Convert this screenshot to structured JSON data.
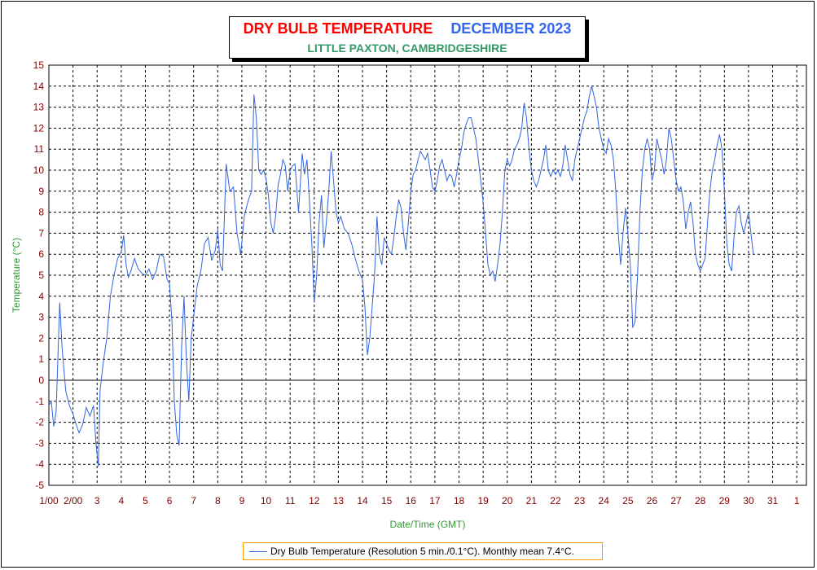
{
  "chart_data": {
    "type": "line",
    "title": "DRY BULB TEMPERATURE",
    "title_month": "DECEMBER 2023",
    "subtitle": "LITTLE PAXTON, CAMBRIDGESHIRE",
    "xlabel": "Date/Time (GMT)",
    "ylabel": "Temperature (°C)",
    "ylim": [
      -5,
      15
    ],
    "xlim": [
      1,
      32.4
    ],
    "yticks": [
      "-5",
      "-4",
      "-3",
      "-2",
      "-1",
      "0",
      "1",
      "2",
      "3",
      "4",
      "5",
      "6",
      "7",
      "8",
      "9",
      "10",
      "11",
      "12",
      "13",
      "14",
      "15"
    ],
    "xticks": [
      {
        "x": 1,
        "label": "1/00"
      },
      {
        "x": 2,
        "label": "2/00"
      },
      {
        "x": 3,
        "label": "3"
      },
      {
        "x": 4,
        "label": "4"
      },
      {
        "x": 5,
        "label": "5"
      },
      {
        "x": 6,
        "label": "6"
      },
      {
        "x": 7,
        "label": "7"
      },
      {
        "x": 8,
        "label": "8"
      },
      {
        "x": 9,
        "label": "9"
      },
      {
        "x": 10,
        "label": "10"
      },
      {
        "x": 11,
        "label": "11"
      },
      {
        "x": 12,
        "label": "12"
      },
      {
        "x": 13,
        "label": "13"
      },
      {
        "x": 14,
        "label": "14"
      },
      {
        "x": 15,
        "label": "15"
      },
      {
        "x": 16,
        "label": "16"
      },
      {
        "x": 17,
        "label": "17"
      },
      {
        "x": 18,
        "label": "18"
      },
      {
        "x": 19,
        "label": "19"
      },
      {
        "x": 20,
        "label": "20"
      },
      {
        "x": 21,
        "label": "21"
      },
      {
        "x": 22,
        "label": "22"
      },
      {
        "x": 23,
        "label": "23"
      },
      {
        "x": 24,
        "label": "24"
      },
      {
        "x": 25,
        "label": "25"
      },
      {
        "x": 26,
        "label": "26"
      },
      {
        "x": 27,
        "label": "27"
      },
      {
        "x": 28,
        "label": "28"
      },
      {
        "x": 29,
        "label": "29"
      },
      {
        "x": 30,
        "label": "30"
      },
      {
        "x": 31,
        "label": "31"
      },
      {
        "x": 32,
        "label": "1"
      }
    ],
    "grid": true,
    "legend_position": "bottom-center",
    "series": [
      {
        "legend": "Dry Bulb Temperature (Resolution 5 min./0.1°C). Monthly mean 7.4°C.",
        "color": "#3366dd",
        "points": [
          [
            1.0,
            -1.2
          ],
          [
            1.1,
            -1.0
          ],
          [
            1.2,
            -2.2
          ],
          [
            1.3,
            -1.5
          ],
          [
            1.45,
            3.7
          ],
          [
            1.55,
            1.5
          ],
          [
            1.7,
            -0.5
          ],
          [
            1.85,
            -1.2
          ],
          [
            2.0,
            -1.6
          ],
          [
            2.1,
            -2.0
          ],
          [
            2.25,
            -2.5
          ],
          [
            2.4,
            -2.1
          ],
          [
            2.55,
            -1.3
          ],
          [
            2.7,
            -1.7
          ],
          [
            2.85,
            -1.2
          ],
          [
            2.95,
            -3.0
          ],
          [
            3.05,
            -4.1
          ],
          [
            3.12,
            -0.5
          ],
          [
            3.25,
            0.8
          ],
          [
            3.4,
            2.0
          ],
          [
            3.55,
            4.0
          ],
          [
            3.7,
            5.0
          ],
          [
            3.85,
            5.8
          ],
          [
            4.0,
            6.1
          ],
          [
            4.1,
            6.9
          ],
          [
            4.2,
            5.5
          ],
          [
            4.3,
            4.9
          ],
          [
            4.4,
            5.2
          ],
          [
            4.55,
            5.8
          ],
          [
            4.7,
            5.3
          ],
          [
            4.85,
            5.1
          ],
          [
            5.0,
            5.0
          ],
          [
            5.15,
            5.3
          ],
          [
            5.3,
            4.8
          ],
          [
            5.45,
            5.2
          ],
          [
            5.6,
            6.0
          ],
          [
            5.75,
            5.9
          ],
          [
            5.9,
            4.8
          ],
          [
            6.0,
            4.6
          ],
          [
            6.1,
            2.8
          ],
          [
            6.2,
            -1.0
          ],
          [
            6.3,
            -2.6
          ],
          [
            6.4,
            -3.1
          ],
          [
            6.5,
            1.5
          ],
          [
            6.6,
            4.0
          ],
          [
            6.7,
            1.0
          ],
          [
            6.8,
            -1.0
          ],
          [
            6.9,
            2.0
          ],
          [
            7.0,
            3.0
          ],
          [
            7.15,
            4.5
          ],
          [
            7.3,
            5.2
          ],
          [
            7.45,
            6.5
          ],
          [
            7.6,
            6.8
          ],
          [
            7.75,
            5.7
          ],
          [
            7.9,
            6.2
          ],
          [
            8.0,
            7.2
          ],
          [
            8.1,
            5.5
          ],
          [
            8.2,
            5.2
          ],
          [
            8.35,
            10.3
          ],
          [
            8.5,
            9.0
          ],
          [
            8.65,
            9.2
          ],
          [
            8.8,
            7.0
          ],
          [
            8.95,
            6.0
          ],
          [
            9.1,
            7.8
          ],
          [
            9.25,
            8.5
          ],
          [
            9.4,
            9.0
          ],
          [
            9.5,
            13.6
          ],
          [
            9.6,
            12.5
          ],
          [
            9.7,
            10.0
          ],
          [
            9.8,
            9.8
          ],
          [
            9.9,
            10.0
          ],
          [
            10.0,
            9.6
          ],
          [
            10.1,
            8.8
          ],
          [
            10.2,
            7.5
          ],
          [
            10.3,
            7.0
          ],
          [
            10.4,
            7.8
          ],
          [
            10.5,
            9.3
          ],
          [
            10.6,
            9.8
          ],
          [
            10.7,
            10.5
          ],
          [
            10.8,
            10.2
          ],
          [
            10.9,
            9.0
          ],
          [
            11.0,
            10.0
          ],
          [
            11.1,
            10.2
          ],
          [
            11.2,
            10.3
          ],
          [
            11.35,
            8.0
          ],
          [
            11.5,
            10.8
          ],
          [
            11.6,
            9.8
          ],
          [
            11.7,
            10.5
          ],
          [
            11.8,
            8.5
          ],
          [
            11.9,
            6.5
          ],
          [
            12.0,
            3.7
          ],
          [
            12.1,
            5.0
          ],
          [
            12.2,
            7.5
          ],
          [
            12.3,
            8.8
          ],
          [
            12.4,
            6.3
          ],
          [
            12.5,
            7.5
          ],
          [
            12.6,
            9.0
          ],
          [
            12.7,
            10.9
          ],
          [
            12.8,
            9.5
          ],
          [
            12.9,
            8.0
          ],
          [
            13.0,
            7.5
          ],
          [
            13.1,
            7.8
          ],
          [
            13.25,
            7.2
          ],
          [
            13.4,
            7.0
          ],
          [
            13.55,
            6.5
          ],
          [
            13.7,
            5.8
          ],
          [
            13.85,
            5.2
          ],
          [
            14.0,
            4.8
          ],
          [
            14.1,
            3.5
          ],
          [
            14.2,
            1.2
          ],
          [
            14.3,
            2.0
          ],
          [
            14.4,
            3.5
          ],
          [
            14.5,
            5.0
          ],
          [
            14.6,
            7.8
          ],
          [
            14.7,
            6.0
          ],
          [
            14.8,
            5.5
          ],
          [
            14.9,
            6.8
          ],
          [
            15.0,
            6.5
          ],
          [
            15.1,
            6.2
          ],
          [
            15.2,
            6.0
          ],
          [
            15.3,
            6.8
          ],
          [
            15.4,
            7.8
          ],
          [
            15.5,
            8.6
          ],
          [
            15.6,
            8.2
          ],
          [
            15.7,
            7.0
          ],
          [
            15.8,
            6.2
          ],
          [
            15.9,
            7.5
          ],
          [
            16.0,
            9.0
          ],
          [
            16.1,
            9.8
          ],
          [
            16.2,
            10.0
          ],
          [
            16.3,
            10.5
          ],
          [
            16.4,
            10.9
          ],
          [
            16.5,
            10.7
          ],
          [
            16.6,
            10.5
          ],
          [
            16.7,
            10.8
          ],
          [
            16.8,
            10.0
          ],
          [
            16.9,
            9.2
          ],
          [
            17.0,
            9.0
          ],
          [
            17.1,
            9.5
          ],
          [
            17.2,
            10.2
          ],
          [
            17.3,
            10.5
          ],
          [
            17.4,
            10.0
          ],
          [
            17.5,
            9.5
          ],
          [
            17.6,
            9.8
          ],
          [
            17.7,
            9.7
          ],
          [
            17.8,
            9.2
          ],
          [
            17.9,
            9.8
          ],
          [
            18.0,
            10.5
          ],
          [
            18.1,
            11.0
          ],
          [
            18.2,
            11.8
          ],
          [
            18.3,
            12.2
          ],
          [
            18.4,
            12.5
          ],
          [
            18.5,
            12.5
          ],
          [
            18.6,
            12.0
          ],
          [
            18.7,
            11.5
          ],
          [
            18.8,
            10.5
          ],
          [
            18.9,
            9.5
          ],
          [
            19.0,
            8.5
          ],
          [
            19.1,
            7.0
          ],
          [
            19.2,
            5.5
          ],
          [
            19.3,
            5.0
          ],
          [
            19.4,
            5.2
          ],
          [
            19.5,
            4.7
          ],
          [
            19.6,
            5.5
          ],
          [
            19.7,
            6.5
          ],
          [
            19.8,
            8.0
          ],
          [
            19.9,
            10.0
          ],
          [
            20.0,
            10.5
          ],
          [
            20.1,
            10.2
          ],
          [
            20.2,
            10.5
          ],
          [
            20.3,
            11.0
          ],
          [
            20.4,
            11.2
          ],
          [
            20.5,
            11.5
          ],
          [
            20.6,
            12.0
          ],
          [
            20.7,
            13.2
          ],
          [
            20.8,
            12.5
          ],
          [
            20.9,
            11.0
          ],
          [
            21.0,
            10.0
          ],
          [
            21.1,
            9.5
          ],
          [
            21.2,
            9.2
          ],
          [
            21.3,
            9.5
          ],
          [
            21.4,
            10.0
          ],
          [
            21.5,
            10.5
          ],
          [
            21.6,
            11.2
          ],
          [
            21.7,
            10.0
          ],
          [
            21.8,
            9.7
          ],
          [
            21.9,
            10.0
          ],
          [
            22.0,
            9.8
          ],
          [
            22.1,
            10.0
          ],
          [
            22.2,
            9.7
          ],
          [
            22.3,
            10.2
          ],
          [
            22.4,
            11.2
          ],
          [
            22.5,
            10.5
          ],
          [
            22.6,
            9.8
          ],
          [
            22.7,
            9.5
          ],
          [
            22.8,
            10.5
          ],
          [
            22.9,
            11.0
          ],
          [
            23.0,
            11.5
          ],
          [
            23.1,
            12.0
          ],
          [
            23.2,
            12.5
          ],
          [
            23.3,
            12.8
          ],
          [
            23.4,
            13.5
          ],
          [
            23.5,
            14.0
          ],
          [
            23.6,
            13.5
          ],
          [
            23.7,
            13.0
          ],
          [
            23.8,
            12.0
          ],
          [
            23.9,
            11.5
          ],
          [
            24.0,
            11.0
          ],
          [
            24.1,
            10.8
          ],
          [
            24.2,
            11.5
          ],
          [
            24.3,
            11.2
          ],
          [
            24.4,
            10.5
          ],
          [
            24.5,
            9.0
          ],
          [
            24.6,
            7.0
          ],
          [
            24.7,
            5.5
          ],
          [
            24.8,
            7.0
          ],
          [
            24.9,
            8.2
          ],
          [
            25.0,
            7.0
          ],
          [
            25.1,
            5.5
          ],
          [
            25.2,
            2.5
          ],
          [
            25.3,
            2.8
          ],
          [
            25.4,
            5.0
          ],
          [
            25.5,
            8.0
          ],
          [
            25.6,
            10.0
          ],
          [
            25.7,
            11.0
          ],
          [
            25.8,
            11.5
          ],
          [
            25.9,
            11.0
          ],
          [
            26.0,
            9.5
          ],
          [
            26.1,
            10.0
          ],
          [
            26.2,
            11.5
          ],
          [
            26.3,
            11.0
          ],
          [
            26.4,
            10.5
          ],
          [
            26.5,
            9.8
          ],
          [
            26.6,
            10.5
          ],
          [
            26.7,
            12.0
          ],
          [
            26.8,
            11.5
          ],
          [
            26.9,
            10.5
          ],
          [
            27.0,
            9.5
          ],
          [
            27.1,
            9.0
          ],
          [
            27.2,
            9.2
          ],
          [
            27.3,
            8.5
          ],
          [
            27.4,
            7.2
          ],
          [
            27.5,
            8.0
          ],
          [
            27.6,
            8.5
          ],
          [
            27.7,
            7.5
          ],
          [
            27.8,
            6.0
          ],
          [
            27.9,
            5.5
          ],
          [
            28.0,
            5.2
          ],
          [
            28.1,
            5.5
          ],
          [
            28.2,
            5.8
          ],
          [
            28.3,
            7.5
          ],
          [
            28.4,
            9.0
          ],
          [
            28.5,
            10.0
          ],
          [
            28.6,
            10.5
          ],
          [
            28.7,
            11.2
          ],
          [
            28.8,
            11.7
          ],
          [
            28.9,
            11.0
          ],
          [
            29.0,
            9.0
          ],
          [
            29.1,
            6.5
          ],
          [
            29.2,
            5.5
          ],
          [
            29.3,
            5.2
          ],
          [
            29.4,
            6.8
          ],
          [
            29.5,
            8.0
          ],
          [
            29.6,
            8.3
          ],
          [
            29.7,
            7.5
          ],
          [
            29.8,
            7.0
          ],
          [
            29.9,
            7.5
          ],
          [
            30.0,
            8.0
          ],
          [
            30.1,
            7.0
          ],
          [
            30.2,
            6.0
          ]
        ]
      }
    ]
  }
}
